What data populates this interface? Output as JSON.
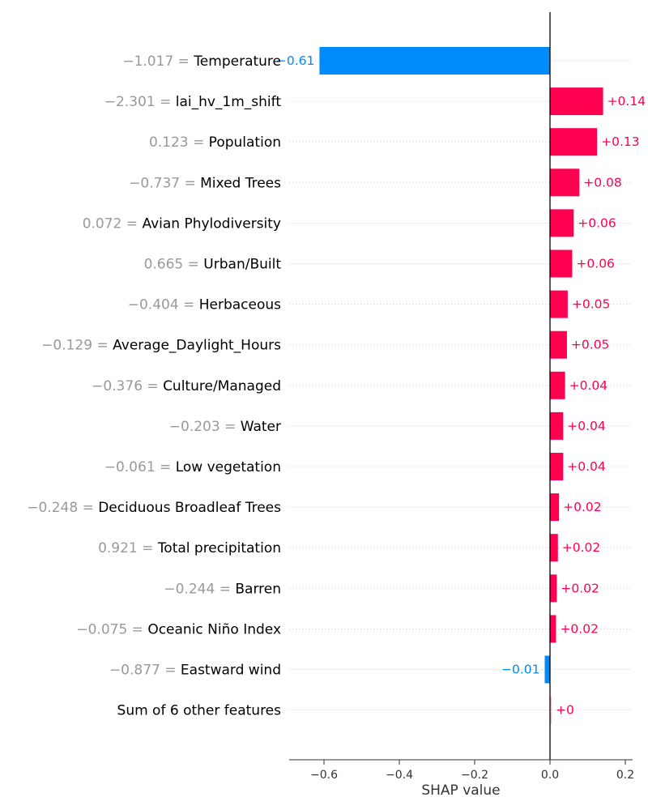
{
  "chart_data": {
    "type": "bar",
    "orientation": "horizontal",
    "xlabel": "SHAP value",
    "xlim": [
      -0.69,
      0.22
    ],
    "xticks": [
      -0.6,
      -0.4,
      -0.2,
      0.0,
      0.2
    ],
    "xtick_labels": [
      "−0.6",
      "−0.4",
      "−0.2",
      "0.0",
      "0.2"
    ],
    "grid": "dotted horizontal row lines",
    "colors": {
      "positive": "#ff0051",
      "negative": "#008bfb",
      "zero": "#f6c5d2",
      "feature_value_text": "#999999"
    },
    "rows": [
      {
        "value_text": "−1.017",
        "feature": "Temperature",
        "shap": -0.612,
        "label": "−0.61"
      },
      {
        "value_text": "−2.301",
        "feature": "lai_hv_1m_shift",
        "shap": 0.141,
        "label": "+0.14"
      },
      {
        "value_text": "0.123",
        "feature": "Population",
        "shap": 0.125,
        "label": "+0.13"
      },
      {
        "value_text": "−0.737",
        "feature": "Mixed Trees",
        "shap": 0.078,
        "label": "+0.08"
      },
      {
        "value_text": "0.072",
        "feature": "Avian Phylodiversity",
        "shap": 0.063,
        "label": "+0.06"
      },
      {
        "value_text": "0.665",
        "feature": "Urban/Built",
        "shap": 0.059,
        "label": "+0.06"
      },
      {
        "value_text": "−0.404",
        "feature": "Herbaceous",
        "shap": 0.047,
        "label": "+0.05"
      },
      {
        "value_text": "−0.129",
        "feature": "Average_Daylight_Hours",
        "shap": 0.045,
        "label": "+0.05"
      },
      {
        "value_text": "−0.376",
        "feature": "Culture/Managed",
        "shap": 0.04,
        "label": "+0.04"
      },
      {
        "value_text": "−0.203",
        "feature": "Water",
        "shap": 0.035,
        "label": "+0.04"
      },
      {
        "value_text": "−0.061",
        "feature": "Low vegetation",
        "shap": 0.035,
        "label": "+0.04"
      },
      {
        "value_text": "−0.248",
        "feature": "Deciduous Broadleaf Trees",
        "shap": 0.024,
        "label": "+0.02"
      },
      {
        "value_text": "0.921",
        "feature": "Total precipitation",
        "shap": 0.021,
        "label": "+0.02"
      },
      {
        "value_text": "−0.244",
        "feature": "Barren",
        "shap": 0.018,
        "label": "+0.02"
      },
      {
        "value_text": "−0.075",
        "feature": "Oceanic Niño Index",
        "shap": 0.016,
        "label": "+0.02"
      },
      {
        "value_text": "−0.877",
        "feature": "Eastward wind",
        "shap": -0.014,
        "label": "−0.01"
      },
      {
        "value_text": "",
        "feature": "Sum of 6 other features",
        "shap": 0.002,
        "label": "+0"
      }
    ]
  }
}
